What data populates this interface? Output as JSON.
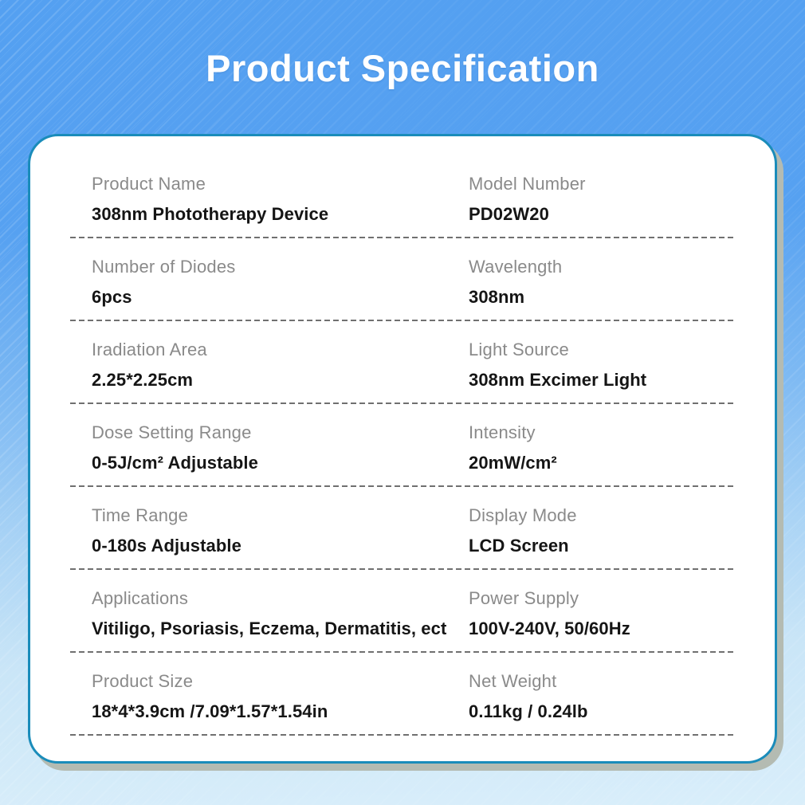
{
  "header": {
    "title": "Product Specification"
  },
  "colors": {
    "background_top": "#54a0f1",
    "background_bottom": "#d9eefa",
    "card_background": "#ffffff",
    "card_border": "#1a8cba",
    "card_shadow": "#b4bbb2",
    "title_text": "#ffffff",
    "label_text": "#8a8a8a",
    "value_text": "#151515",
    "separator": "#707070"
  },
  "spec_table": {
    "rows": [
      {
        "left": {
          "label": "Product Name",
          "value": "308nm Phototherapy Device"
        },
        "right": {
          "label": "Model Number",
          "value": "PD02W20"
        }
      },
      {
        "left": {
          "label": "Number of Diodes",
          "value": "6pcs"
        },
        "right": {
          "label": "Wavelength",
          "value": "308nm"
        }
      },
      {
        "left": {
          "label": "Iradiation Area",
          "value": "2.25*2.25cm"
        },
        "right": {
          "label": "Light Source",
          "value": "308nm Excimer Light"
        }
      },
      {
        "left": {
          "label": "Dose Setting Range",
          "value": "0-5J/cm² Adjustable"
        },
        "right": {
          "label": "Intensity",
          "value": "20mW/cm²"
        }
      },
      {
        "left": {
          "label": "Time Range",
          "value": "0-180s Adjustable"
        },
        "right": {
          "label": "Display Mode",
          "value": "LCD Screen"
        }
      },
      {
        "left": {
          "label": "Applications",
          "value": "Vitiligo, Psoriasis, Eczema, Dermatitis, ect"
        },
        "right": {
          "label": "Power Supply",
          "value": "100V-240V, 50/60Hz"
        }
      },
      {
        "left": {
          "label": "Product Size",
          "value": "18*4*3.9cm /7.09*1.57*1.54in"
        },
        "right": {
          "label": "Net Weight",
          "value": "0.11kg / 0.24lb"
        }
      }
    ]
  }
}
